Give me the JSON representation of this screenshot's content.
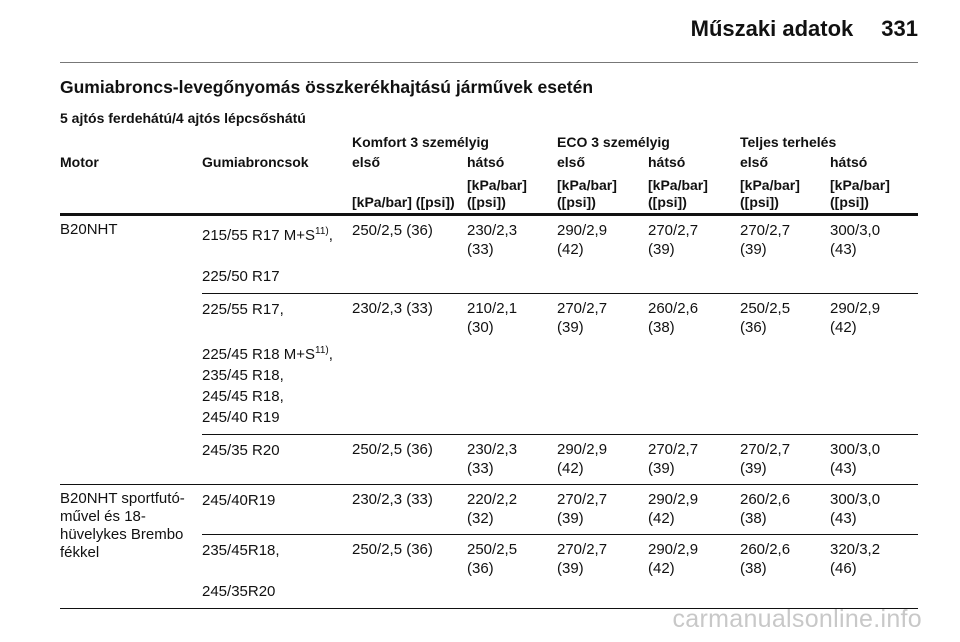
{
  "header": {
    "section": "Műszaki adatok",
    "page": "331"
  },
  "title": "Gumiabroncs-levegőnyomás összkerékhajtású járművek esetén",
  "subtitle": "5 ajtós ferdehátú/4 ajtós lépcsőshátú",
  "table": {
    "groups": [
      "Komfort 3 személyig",
      "ECO 3 személyig",
      "Teljes terhelés"
    ],
    "columns": [
      "Motor",
      "Gumiabroncsok",
      "első",
      "hátsó",
      "első",
      "hátsó",
      "első",
      "hátsó"
    ],
    "units": [
      "[kPa/bar] ([psi])",
      "[kPa/bar] ([psi])",
      "[kPa/bar] ([psi])",
      "[kPa/bar] ([psi])",
      "[kPa/bar] ([psi])",
      "[kPa/bar] ([psi])"
    ],
    "engines": [
      {
        "motor": "B20NHT",
        "rows": [
          {
            "tyres": [
              {
                "text": "215/55 R17 M+S",
                "note": "11)",
                "after": ","
              },
              "225/50 R17"
            ],
            "values": [
              "250/2,5 (36)",
              "230/2,3 (33)",
              "290/2,9 (42)",
              "270/2,7 (39)",
              "270/2,7 (39)",
              "300/3,0 (43)"
            ]
          },
          {
            "tyres": [
              "225/55 R17,",
              {
                "text": "225/45 R18 M+S",
                "note": "11)",
                "after": ","
              },
              "235/45 R18,",
              "245/45 R18,",
              "245/40 R19"
            ],
            "values": [
              "230/2,3 (33)",
              "210/2,1 (30)",
              "270/2,7 (39)",
              "260/2,6 (38)",
              "250/2,5 (36)",
              "290/2,9 (42)"
            ]
          },
          {
            "tyres": [
              "245/35 R20"
            ],
            "values": [
              "250/2,5 (36)",
              "230/2,3 (33)",
              "290/2,9 (42)",
              "270/2,7 (39)",
              "270/2,7 (39)",
              "300/3,0 (43)"
            ]
          }
        ]
      },
      {
        "motor": "B20NHT sportfutó-művel és 18-hüvelykes Brembo fékkel",
        "rows": [
          {
            "tyres": [
              "245/40R19"
            ],
            "values": [
              "230/2,3 (33)",
              "220/2,2 (32)",
              "270/2,7 (39)",
              "290/2,9 (42)",
              "260/2,6 (38)",
              "300/3,0 (43)"
            ]
          },
          {
            "tyres": [
              "235/45R18,",
              "245/35R20"
            ],
            "values": [
              "250/2,5 (36)",
              "250/2,5 (36)",
              "270/2,7 (39)",
              "290/2,9 (42)",
              "260/2,6 (38)",
              "320/3,2 (46)"
            ]
          }
        ]
      }
    ]
  },
  "watermark": "carmanualsonline.info"
}
